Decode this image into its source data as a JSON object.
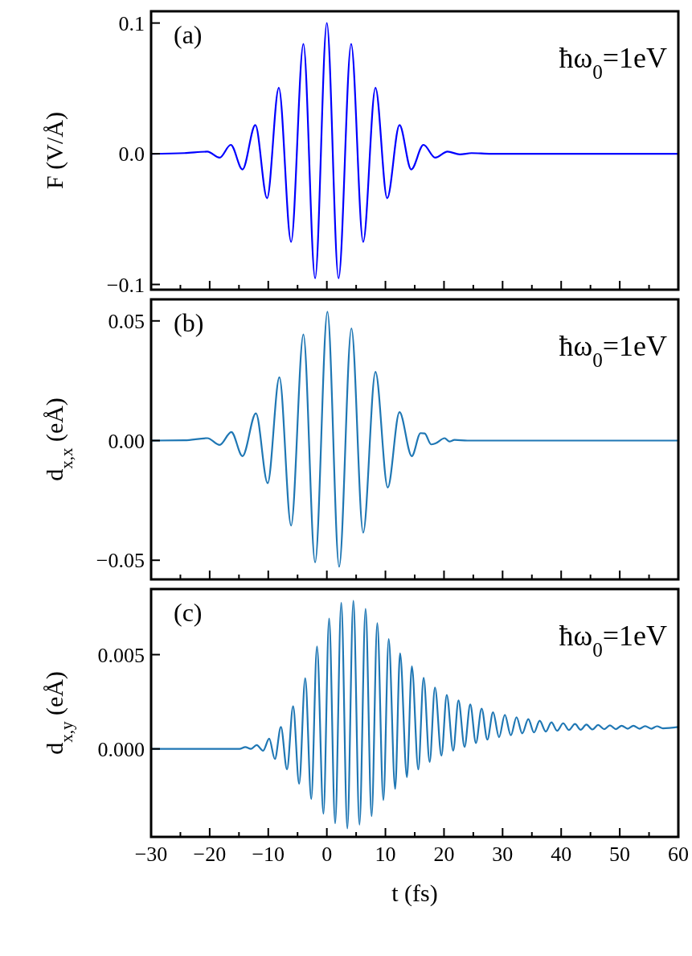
{
  "chart_data": [
    {
      "type": "line",
      "ylabel": "F (V/Å)",
      "annotations": [
        "(a)",
        "ħω$_{0}$=1eV"
      ],
      "xlim": [
        -30,
        60
      ],
      "xticks": [
        -30,
        {
          "value": -25,
          "label": null
        },
        -20,
        {
          "value": -15,
          "label": null
        },
        -10,
        {
          "value": -5,
          "label": null
        },
        0,
        {
          "value": 5,
          "label": null
        },
        10,
        {
          "value": 15,
          "label": null
        },
        20,
        {
          "value": 25,
          "label": null
        },
        30,
        {
          "value": 35,
          "label": null
        },
        40,
        {
          "value": 45,
          "label": null
        },
        50,
        {
          "value": 55,
          "label": null
        },
        60
      ],
      "ylim": [
        -0.104,
        0.109
      ],
      "yticks": [
        {
          "value": -0.1,
          "label": "−0.1"
        },
        {
          "value": 0,
          "label": "0.0"
        },
        0.1
      ],
      "tick_labels": "y",
      "line_style": "solid",
      "series": [
        {
          "color": "#0000ff",
          "x": [
            -30,
            -24.3,
            -20.4,
            -18.3,
            -16.4,
            -14.4,
            -12.2,
            -10.2,
            -8.2,
            -6.1,
            -4.0,
            -2.0,
            0,
            2.0,
            4.15,
            6.2,
            8.3,
            10.3,
            12.4,
            14.4,
            16.5,
            18.5,
            20.6,
            22.7,
            24.7,
            28,
            60
          ],
          "values": [
            0,
            0.0005,
            0.0016,
            -0.003,
            0.0068,
            -0.012,
            0.022,
            -0.034,
            0.0505,
            -0.0674,
            0.084,
            -0.0953,
            0.1,
            -0.0953,
            0.084,
            -0.0674,
            0.0505,
            -0.034,
            0.022,
            -0.012,
            0.0068,
            -0.003,
            0.0016,
            -0.0005,
            0.0005,
            0,
            0
          ]
        }
      ]
    },
    {
      "type": "line",
      "ylabel": "d$_{x,x}$ (eÅ)",
      "annotations": [
        "(b)",
        "ħω$_{0}$=1eV"
      ],
      "xlim": [
        -30,
        60
      ],
      "xticks": [
        -30,
        {
          "value": -25,
          "label": null
        },
        -20,
        {
          "value": -15,
          "label": null
        },
        -10,
        {
          "value": -5,
          "label": null
        },
        0,
        {
          "value": 5,
          "label": null
        },
        10,
        {
          "value": 15,
          "label": null
        },
        20,
        {
          "value": 25,
          "label": null
        },
        30,
        {
          "value": 35,
          "label": null
        },
        40,
        {
          "value": 45,
          "label": null
        },
        50,
        {
          "value": 55,
          "label": null
        },
        60
      ],
      "ylim": [
        -0.058,
        0.059
      ],
      "yticks": [
        {
          "value": -0.05,
          "label": "−0.05"
        },
        {
          "value": 0,
          "label": "0.00"
        },
        0.05
      ],
      "tick_labels": "y",
      "line_style": "solid",
      "series": [
        {
          "color": "#1f77b4",
          "x": [
            -30,
            -24.3,
            -20.4,
            -18.3,
            -16.3,
            -14.4,
            -12.1,
            -10.1,
            -8.1,
            -6.1,
            -4.0,
            -2.0,
            0.1,
            2.1,
            4.2,
            6.2,
            8.3,
            10.4,
            12.4,
            14.5,
            16.0,
            16.7,
            17.8,
            18.6,
            20.1,
            20.9,
            21.8,
            24,
            60
          ],
          "values": [
            0,
            0.0001,
            0.001,
            -0.0018,
            0.0036,
            -0.0065,
            0.0114,
            -0.0178,
            0.0264,
            -0.0355,
            0.0443,
            -0.0509,
            0.0538,
            -0.0527,
            0.0469,
            -0.0385,
            0.0287,
            -0.0196,
            0.0119,
            -0.0065,
            0.0031,
            0.003,
            -0.0016,
            -0.0011,
            0.001,
            -0.0004,
            0.0003,
            0,
            0
          ]
        }
      ]
    },
    {
      "type": "line",
      "xlabel": "t (fs)",
      "ylabel": "d$_{x,y}$ (eÅ)",
      "annotations": [
        "(c)",
        "ħω$_{0}$=1eV"
      ],
      "xlim": [
        -30,
        60
      ],
      "xticks": [
        {
          "value": -30,
          "label": "−30"
        },
        {
          "value": -25,
          "label": null
        },
        {
          "value": -20,
          "label": "−20"
        },
        {
          "value": -15,
          "label": null
        },
        {
          "value": -10,
          "label": "−10"
        },
        {
          "value": -5,
          "label": null
        },
        0,
        {
          "value": 5,
          "label": null
        },
        10,
        {
          "value": 15,
          "label": null
        },
        20,
        {
          "value": 25,
          "label": null
        },
        30,
        {
          "value": 35,
          "label": null
        },
        40,
        {
          "value": 45,
          "label": null
        },
        50,
        {
          "value": 55,
          "label": null
        },
        60
      ],
      "ylim": [
        -0.00467,
        0.00848
      ],
      "yticks": [
        {
          "value": 0,
          "label": "0.000"
        },
        0.005
      ],
      "line_style": "solid",
      "series": [
        {
          "color": "#1f77b4",
          "x": [
            -30,
            -17,
            -14.9,
            -13.92,
            -12.95,
            -11.98,
            -10.88,
            -9.84,
            -8.87,
            -7.84,
            -6.8,
            -5.76,
            -4.73,
            -3.69,
            -2.66,
            -1.68,
            -0.58,
            0.39,
            1.42,
            2.46,
            3.5,
            4.53,
            5.57,
            6.61,
            7.64,
            8.61,
            9.65,
            10.56,
            11.66,
            12.5,
            13.67,
            14.51,
            15.61,
            16.52,
            17.55,
            18.46,
            19.56,
            20.47,
            21.57,
            22.47,
            23.51,
            24.48,
            25.45,
            26.42,
            27.4,
            28.37,
            29.4,
            30.38,
            31.41,
            32.38,
            33.35,
            34.39,
            35.36,
            36.33,
            37.37,
            38.34,
            39.31,
            40.35,
            41.32,
            42.36,
            43.33,
            44.3,
            45.34,
            46.31,
            47.35,
            48.32,
            49.35,
            50.32,
            51.36,
            52.33,
            53.37,
            54.34,
            55.38,
            56.35,
            57.38,
            60
          ],
          "values": [
            0,
            0,
            0,
            0.0001,
            0,
            0.0002,
            -0.0001,
            0.00054,
            -0.00054,
            0.00116,
            -0.00109,
            0.00226,
            -0.00185,
            0.00375,
            -0.00266,
            0.00543,
            -0.00344,
            0.00692,
            -0.00395,
            0.00775,
            -0.00422,
            0.00786,
            -0.00402,
            0.00743,
            -0.00357,
            0.00667,
            -0.00272,
            0.00583,
            -0.00212,
            0.00507,
            -0.0015,
            0.00438,
            -0.00109,
            0.00377,
            -0.00069,
            0.00326,
            -0.00036,
            0.00286,
            -0.0001,
            0.00257,
            0.00011,
            0.00236,
            0.00031,
            0.00214,
            0.00049,
            0.00194,
            0.00062,
            0.00181,
            0.00072,
            0.00168,
            0.00082,
            0.00158,
            0.00087,
            0.00149,
            0.00092,
            0.00141,
            0.00096,
            0.00136,
            0.001,
            0.00132,
            0.00101,
            0.00129,
            0.00103,
            0.00127,
            0.00105,
            0.00125,
            0.00105,
            0.00123,
            0.00107,
            0.00123,
            0.00107,
            0.00121,
            0.00107,
            0.0012,
            0.00109,
            0.00116
          ]
        }
      ]
    }
  ]
}
